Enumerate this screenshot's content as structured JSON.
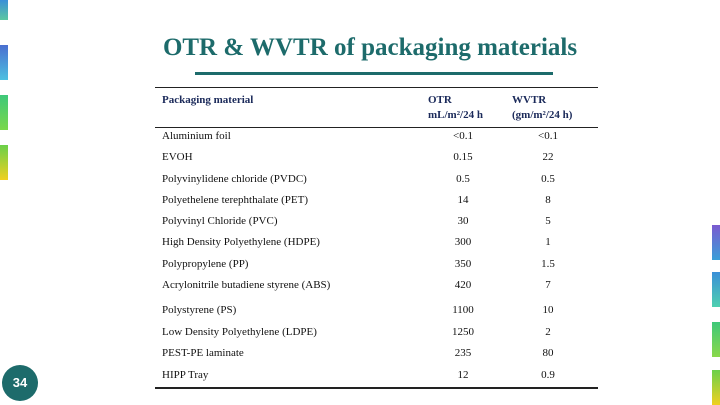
{
  "title": "OTR & WVTR of packaging materials",
  "table": {
    "header": [
      "Packaging material",
      [
        "OTR",
        "mL/m²/24 h"
      ],
      [
        "WVTR",
        "(gm/m²/24 h)"
      ]
    ],
    "rows": [
      [
        "Aluminium foil",
        "<0.1",
        "<0.1"
      ],
      [
        "EVOH",
        0.15,
        22
      ],
      [
        "Polyvinylidene chloride (PVDC)",
        0.5,
        0.5
      ],
      [
        "Polyethelene terephthalate (PET)",
        14,
        8
      ],
      [
        "Polyvinyl Chloride (PVC)",
        30,
        5
      ],
      [
        "High Density Polyethylene (HDPE)",
        300,
        1
      ],
      [
        "Polypropylene (PP)",
        350,
        1.5
      ],
      [
        "Acrylonitrile butadiene styrene (ABS)",
        420,
        7
      ],
      [
        "Polystyrene (PS)",
        1100,
        10
      ],
      [
        "Low Density Polyethylene (LDPE)",
        1250,
        2
      ],
      [
        "PEST-PE laminate",
        235,
        80
      ],
      [
        "HIPP Tray",
        12,
        0.9
      ]
    ]
  },
  "page_number": "34"
}
